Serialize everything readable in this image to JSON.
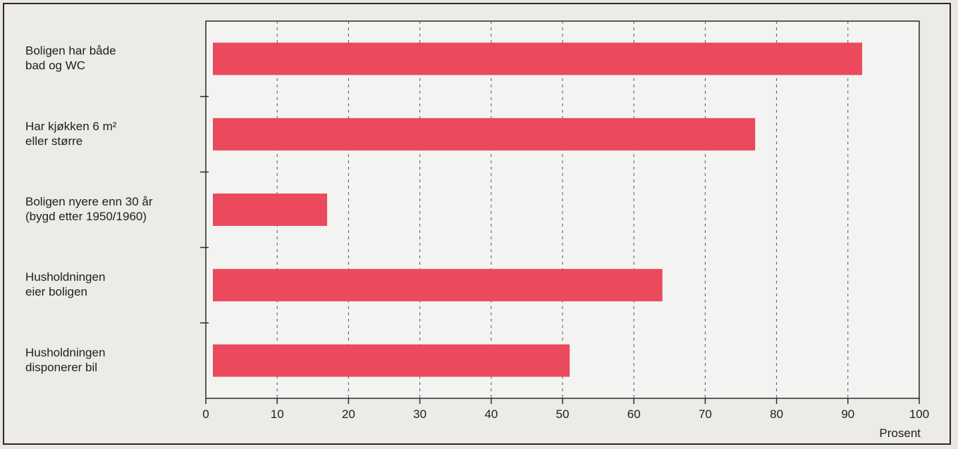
{
  "chart_data": {
    "type": "bar",
    "orientation": "horizontal",
    "categories": [
      [
        "Boligen har både",
        "bad og WC"
      ],
      [
        "Har kjøkken 6 m²",
        "eller større"
      ],
      [
        "Boligen nyere enn 30 år",
        "(bygd etter 1950/1960)"
      ],
      [
        "Husholdningen",
        "eier boligen"
      ],
      [
        "Husholdningen",
        "disponerer bil"
      ]
    ],
    "values": [
      92,
      77,
      17,
      64,
      51
    ],
    "xlabel": "Prosent",
    "xlim": [
      0,
      100
    ],
    "xticks": [
      0,
      10,
      20,
      30,
      40,
      50,
      60,
      70,
      80,
      90,
      100
    ],
    "grid": "vertical-dashed",
    "bar_color": "#ea4a5b"
  }
}
